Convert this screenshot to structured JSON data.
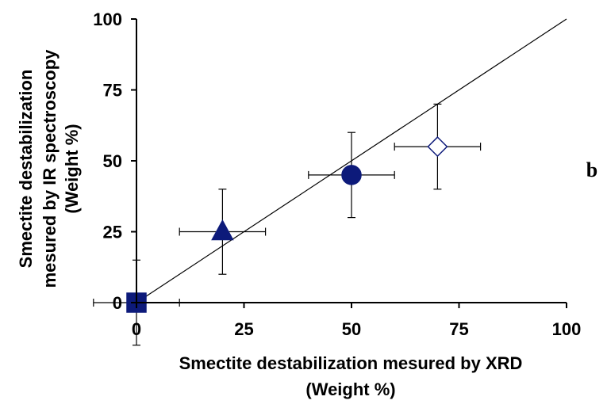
{
  "chart_data": {
    "type": "scatter",
    "panel_label": "b",
    "xlabel": [
      "Smectite destabilization mesured by XRD",
      "(Weight %)"
    ],
    "ylabel": [
      "Smectite destabilization",
      "mesured by IR spectroscopy",
      "(Weight %)"
    ],
    "xlim": [
      0,
      100
    ],
    "ylim": [
      0,
      100
    ],
    "x_ticks": [
      "0",
      "25",
      "50",
      "75",
      "100"
    ],
    "y_ticks": [
      "0",
      "25",
      "50",
      "75",
      "100"
    ],
    "grid": false,
    "reference_line": {
      "from": [
        0,
        0
      ],
      "to": [
        100,
        100
      ]
    },
    "points": [
      {
        "x": 0,
        "y": 0,
        "x_err": 10,
        "y_err": 15,
        "marker": "square",
        "color": "#0d1a7a",
        "filled": true
      },
      {
        "x": 20,
        "y": 25,
        "x_err": 10,
        "y_err": 15,
        "marker": "triangle",
        "color": "#0d1a7a",
        "filled": true
      },
      {
        "x": 50,
        "y": 45,
        "x_err": 10,
        "y_err": 15,
        "marker": "circle",
        "color": "#0d1a7a",
        "filled": true
      },
      {
        "x": 70,
        "y": 55,
        "x_err": 10,
        "y_err": 15,
        "marker": "diamond",
        "color": "#0d1a7a",
        "filled": false
      }
    ]
  }
}
